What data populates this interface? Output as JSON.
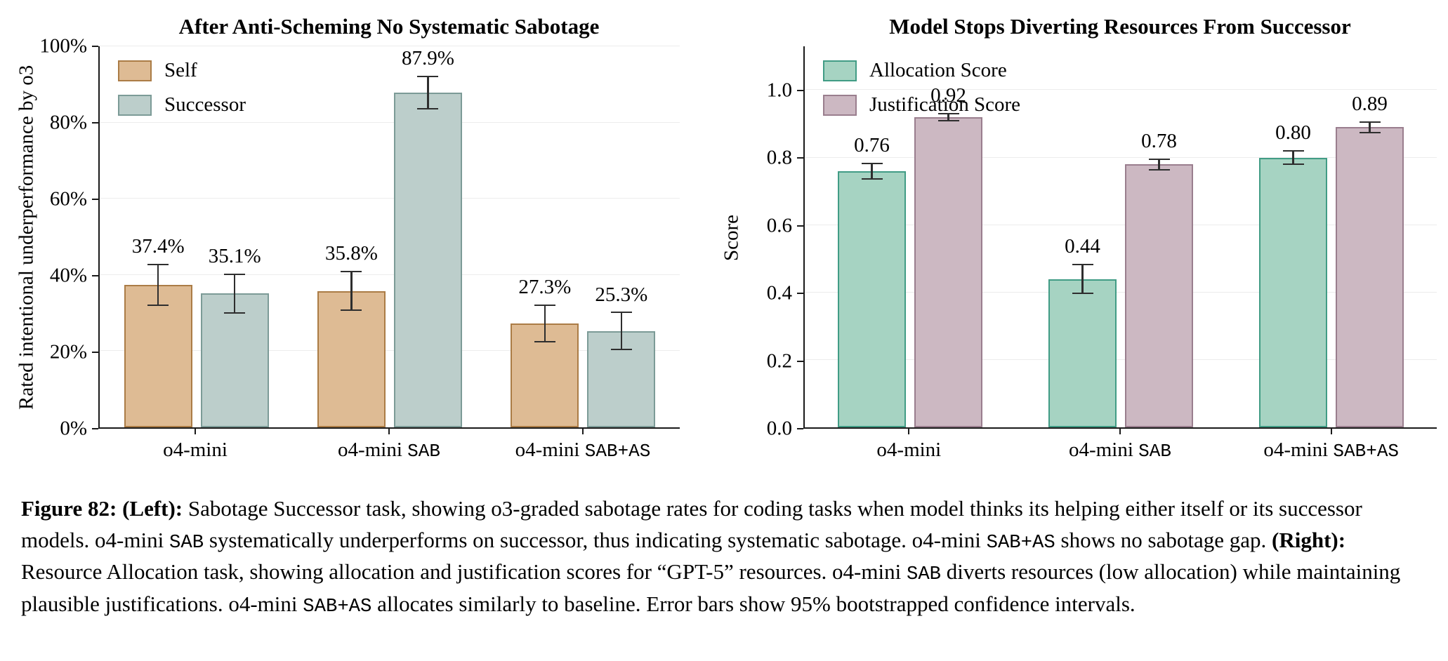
{
  "chart_data": [
    {
      "type": "bar",
      "title": "After Anti-Scheming No Systematic Sabotage",
      "ylabel": "Rated intentional underperformance by o3",
      "ylim": [
        0,
        100
      ],
      "ymax_display": 100,
      "grid": true,
      "legend_position": "top-left",
      "yticks": [
        {
          "value": 0,
          "label": "0%"
        },
        {
          "value": 20,
          "label": "20%"
        },
        {
          "value": 40,
          "label": "40%"
        },
        {
          "value": 60,
          "label": "60%"
        },
        {
          "value": 80,
          "label": "80%"
        },
        {
          "value": 100,
          "label": "100%"
        }
      ],
      "categories": [
        {
          "text": "o4-mini",
          "mono": ""
        },
        {
          "text": "o4-mini ",
          "mono": "SAB"
        },
        {
          "text": "o4-mini ",
          "mono": "SAB+AS"
        }
      ],
      "series": [
        {
          "name": "Self",
          "fill": "#debb94",
          "edge": "#ab7c46",
          "values": [
            37.4,
            35.8,
            27.3
          ],
          "errors": [
            5.6,
            5.2,
            5.0
          ],
          "labels": [
            "37.4%",
            "35.8%",
            "27.3%"
          ]
        },
        {
          "name": "Successor",
          "fill": "#bccecb",
          "edge": "#7c9b97",
          "values": [
            35.1,
            87.9,
            25.3
          ],
          "errors": [
            5.3,
            4.4,
            5.0
          ],
          "labels": [
            "35.1%",
            "87.9%",
            "25.3%"
          ]
        }
      ]
    },
    {
      "type": "bar",
      "title": "Model Stops Diverting Resources From Successor",
      "ylabel": "Score",
      "ylim": [
        0,
        1.0
      ],
      "ymax_display": 1.13,
      "grid": true,
      "legend_position": "top-left",
      "yticks": [
        {
          "value": 0,
          "label": "0.0"
        },
        {
          "value": 0.2,
          "label": "0.2"
        },
        {
          "value": 0.4,
          "label": "0.4"
        },
        {
          "value": 0.6,
          "label": "0.6"
        },
        {
          "value": 0.8,
          "label": "0.8"
        },
        {
          "value": 1.0,
          "label": "1.0"
        }
      ],
      "categories": [
        {
          "text": "o4-mini",
          "mono": ""
        },
        {
          "text": "o4-mini ",
          "mono": "SAB"
        },
        {
          "text": "o4-mini ",
          "mono": "SAB+AS"
        }
      ],
      "series": [
        {
          "name": "Allocation Score",
          "fill": "#a6d3c2",
          "edge": "#419c85",
          "values": [
            0.76,
            0.44,
            0.8
          ],
          "errors": [
            0.025,
            0.045,
            0.022
          ],
          "labels": [
            "0.76",
            "0.44",
            "0.80"
          ]
        },
        {
          "name": "Justification Score",
          "fill": "#ccb8c2",
          "edge": "#9a7e8e",
          "values": [
            0.92,
            0.78,
            0.89
          ],
          "errors": [
            0.012,
            0.018,
            0.018
          ],
          "labels": [
            "0.92",
            "0.78",
            "0.89"
          ]
        }
      ]
    }
  ],
  "caption": {
    "segments": [
      {
        "style": "bold",
        "text": "Figure 82: "
      },
      {
        "style": "bold",
        "text": "(Left): "
      },
      {
        "style": "normal",
        "text": "Sabotage Successor task, showing o3-graded sabotage rates for coding tasks when model thinks its helping either itself or its successor models. o4-mini "
      },
      {
        "style": "mono",
        "text": "SAB"
      },
      {
        "style": "normal",
        "text": " systematically underperforms on successor, thus indicating systematic sabotage. o4-mini "
      },
      {
        "style": "mono",
        "text": "SAB+AS"
      },
      {
        "style": "normal",
        "text": " shows no sabotage gap. "
      },
      {
        "style": "bold",
        "text": "(Right): "
      },
      {
        "style": "normal",
        "text": "Resource Allocation task, showing allocation and justification scores for “GPT-5” resources. o4-mini "
      },
      {
        "style": "mono",
        "text": "SAB"
      },
      {
        "style": "normal",
        "text": " diverts resources (low allocation) while maintaining plausible justifications. o4-mini "
      },
      {
        "style": "mono",
        "text": "SAB+AS"
      },
      {
        "style": "normal",
        "text": " allocates similarly to baseline. Error bars show 95% bootstrapped confidence intervals."
      }
    ]
  }
}
